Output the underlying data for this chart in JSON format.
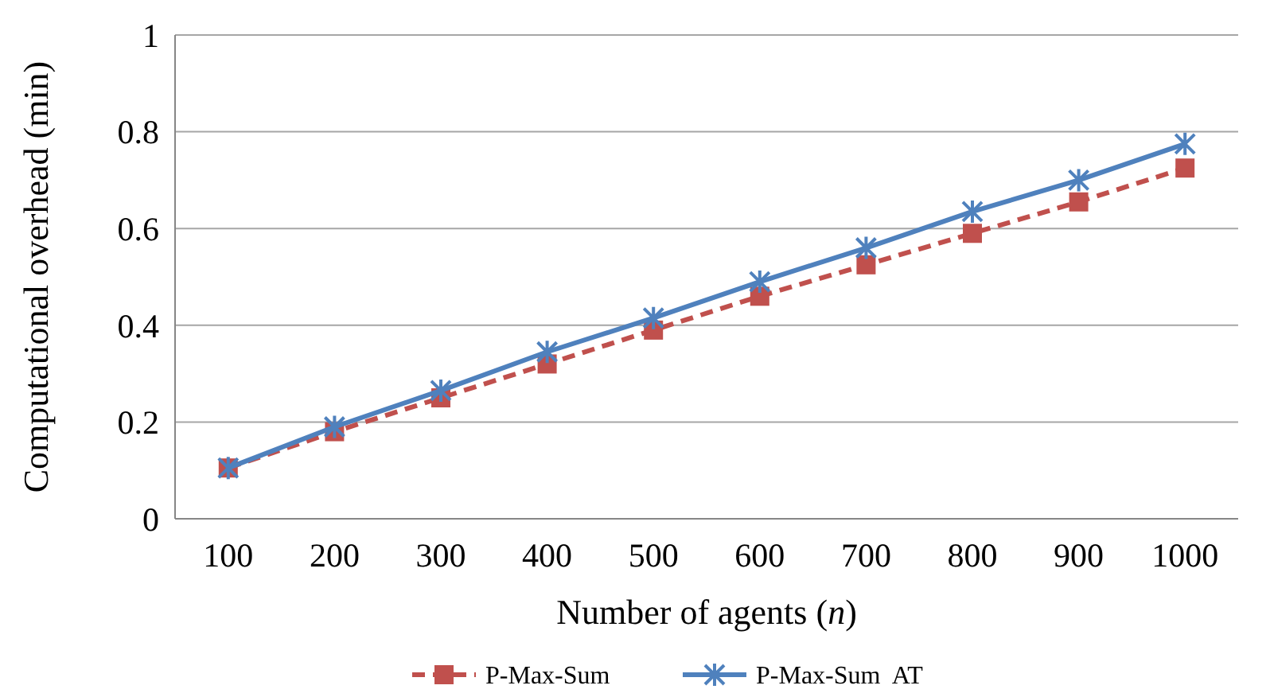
{
  "chart_data": {
    "type": "line",
    "xlabel": "Number of agents (n)",
    "ylabel": "Computational overhead (min)",
    "categories": [
      "100",
      "200",
      "300",
      "400",
      "500",
      "600",
      "700",
      "800",
      "900",
      "1000"
    ],
    "series": [
      {
        "name": "P-Max-Sum",
        "color": "#c0504d",
        "marker": "square",
        "line_style": "dashed",
        "values": [
          0.105,
          0.18,
          0.25,
          0.32,
          0.39,
          0.46,
          0.525,
          0.59,
          0.655,
          0.725
        ]
      },
      {
        "name": "P-Max-Sum  AT",
        "color": "#4f81bd",
        "marker": "cross",
        "line_style": "solid",
        "values": [
          0.105,
          0.19,
          0.265,
          0.345,
          0.415,
          0.49,
          0.56,
          0.635,
          0.7,
          0.775
        ]
      }
    ],
    "ylim": [
      0,
      1
    ],
    "yticks": [
      0,
      0.2,
      0.4,
      0.6,
      0.8,
      1
    ],
    "grid": "y",
    "legend": "bottom"
  }
}
